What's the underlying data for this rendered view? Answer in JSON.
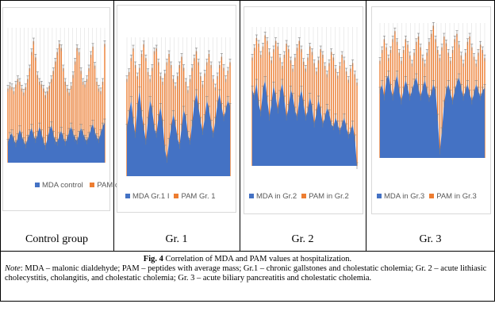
{
  "colors": {
    "mda": "#4472c4",
    "pam": "#ed7d31",
    "grid": "#d9d9d9"
  },
  "legends": {
    "control": {
      "mda": "MDA control",
      "pam": "PAM control"
    },
    "gr1": {
      "mda": "MDA Gr.1 I",
      "pam": "PAM  Gr. 1"
    },
    "gr2": {
      "mda": "MDA in Gr.2",
      "pam": "PAM in Gr.2"
    },
    "gr3": {
      "mda": "MDA in Gr.3",
      "pam": "PAM in Gr.3"
    }
  },
  "group_labels": [
    "Control group",
    "Gr. 1",
    "Gr. 2",
    "Gr. 3"
  ],
  "caption": {
    "fig_label": "Fig. 4",
    "fig_title": " Correlation of MDA and PAM values at hospitalization.",
    "note_label": "Note",
    "note_text": ": MDA – malonic dialdehyde; PAM – peptides with average mass; Gr.1 – chronic gallstones and cholestatic cholemia; Gr. 2 – acute lithiasic cholecystitis, cholangitis, and cholestatic cholemia; Gr. 3 – acute biliary pancreatitis and cholestatic cholemia."
  },
  "chart_data": [
    {
      "type": "area",
      "series": [
        {
          "name": "MDA control",
          "values": [
            0.15,
            0.2,
            0.22,
            0.17,
            0.14,
            0.19,
            0.25,
            0.2,
            0.16,
            0.13,
            0.18,
            0.22,
            0.26,
            0.2,
            0.17,
            0.21,
            0.27,
            0.22,
            0.16,
            0.12,
            0.18,
            0.24,
            0.28,
            0.21,
            0.16,
            0.15,
            0.2,
            0.24,
            0.19,
            0.15,
            0.18,
            0.23,
            0.27,
            0.22,
            0.18,
            0.16,
            0.21,
            0.26,
            0.22,
            0.18,
            0.16,
            0.2,
            0.25,
            0.29,
            0.23,
            0.19,
            0.17,
            0.22,
            0.27,
            0.3
          ]
        },
        {
          "name": "PAM control",
          "values": [
            0.55,
            0.57,
            0.56,
            0.53,
            0.58,
            0.62,
            0.6,
            0.55,
            0.52,
            0.56,
            0.62,
            0.7,
            0.82,
            0.9,
            0.78,
            0.65,
            0.6,
            0.58,
            0.55,
            0.5,
            0.53,
            0.57,
            0.62,
            0.68,
            0.75,
            0.82,
            0.88,
            0.85,
            0.7,
            0.6,
            0.55,
            0.52,
            0.57,
            0.65,
            0.75,
            0.85,
            0.82,
            0.68,
            0.6,
            0.58,
            0.62,
            0.7,
            0.8,
            0.86,
            0.72,
            0.6,
            0.55,
            0.53,
            0.6,
            0.88
          ]
        }
      ]
    },
    {
      "type": "area",
      "series": [
        {
          "name": "MDA Gr.1 I",
          "values": [
            0.35,
            0.45,
            0.55,
            0.4,
            0.3,
            0.5,
            0.62,
            0.45,
            0.35,
            0.25,
            0.4,
            0.55,
            0.48,
            0.35,
            0.3,
            0.42,
            0.5,
            0.38,
            0.2,
            0.12,
            0.25,
            0.35,
            0.45,
            0.38,
            0.28,
            0.22,
            0.35,
            0.48,
            0.42,
            0.3,
            0.25,
            0.38,
            0.52,
            0.6,
            0.5,
            0.4,
            0.32,
            0.42,
            0.55,
            0.48,
            0.38,
            0.3,
            0.4,
            0.52,
            0.6,
            0.5,
            0.42,
            0.48,
            0.55,
            0.5
          ]
        },
        {
          "name": "PAM  Gr. 1",
          "values": [
            0.7,
            0.75,
            0.85,
            0.92,
            0.8,
            0.72,
            0.78,
            0.88,
            0.95,
            0.85,
            0.75,
            0.7,
            0.78,
            0.9,
            0.92,
            0.82,
            0.72,
            0.68,
            0.74,
            0.82,
            0.88,
            0.8,
            0.7,
            0.65,
            0.72,
            0.8,
            0.86,
            0.78,
            0.68,
            0.62,
            0.7,
            0.78,
            0.85,
            0.9,
            0.82,
            0.72,
            0.66,
            0.74,
            0.82,
            0.88,
            0.8,
            0.7,
            0.64,
            0.72,
            0.8,
            0.86,
            0.78,
            0.7,
            0.76,
            0.82
          ]
        }
      ]
    },
    {
      "type": "area",
      "series": [
        {
          "name": "MDA in Gr.2",
          "values": [
            0.55,
            0.5,
            0.6,
            0.45,
            0.38,
            0.55,
            0.62,
            0.48,
            0.35,
            0.45,
            0.58,
            0.5,
            0.4,
            0.52,
            0.6,
            0.48,
            0.35,
            0.42,
            0.55,
            0.5,
            0.4,
            0.35,
            0.48,
            0.55,
            0.45,
            0.35,
            0.4,
            0.5,
            0.42,
            0.3,
            0.38,
            0.48,
            0.4,
            0.3,
            0.35,
            0.42,
            0.38,
            0.3,
            0.28,
            0.35,
            0.3,
            0.25,
            0.3,
            0.35,
            0.28,
            0.22,
            0.25,
            0.3,
            0.2,
            0.0
          ]
        },
        {
          "name": "PAM in Gr.2",
          "values": [
            0.78,
            0.85,
            0.92,
            0.88,
            0.8,
            0.86,
            0.94,
            0.9,
            0.82,
            0.76,
            0.84,
            0.9,
            0.86,
            0.78,
            0.72,
            0.8,
            0.88,
            0.84,
            0.76,
            0.7,
            0.78,
            0.85,
            0.9,
            0.84,
            0.75,
            0.7,
            0.78,
            0.86,
            0.82,
            0.74,
            0.68,
            0.76,
            0.84,
            0.8,
            0.72,
            0.66,
            0.74,
            0.82,
            0.78,
            0.7,
            0.65,
            0.72,
            0.8,
            0.76,
            0.68,
            0.62,
            0.7,
            0.74,
            0.66,
            0.6
          ]
        }
      ]
    },
    {
      "type": "area",
      "series": [
        {
          "name": "MDA in Gr.3",
          "values": [
            0.5,
            0.55,
            0.45,
            0.58,
            0.62,
            0.52,
            0.45,
            0.55,
            0.62,
            0.5,
            0.42,
            0.5,
            0.58,
            0.52,
            0.45,
            0.5,
            0.56,
            0.6,
            0.52,
            0.45,
            0.52,
            0.58,
            0.5,
            0.44,
            0.48,
            0.55,
            0.5,
            0.3,
            0.05,
            0.2,
            0.4,
            0.5,
            0.55,
            0.48,
            0.42,
            0.5,
            0.56,
            0.6,
            0.52,
            0.45,
            0.5,
            0.55,
            0.48,
            0.42,
            0.48,
            0.55,
            0.5,
            0.45,
            0.5,
            0.52
          ]
        },
        {
          "name": "PAM in Gr.3",
          "values": [
            0.72,
            0.8,
            0.88,
            0.82,
            0.74,
            0.8,
            0.88,
            0.94,
            0.86,
            0.78,
            0.72,
            0.8,
            0.88,
            0.84,
            0.76,
            0.7,
            0.78,
            0.86,
            0.9,
            0.82,
            0.74,
            0.7,
            0.78,
            0.86,
            0.92,
            0.98,
            0.88,
            0.8,
            0.74,
            0.82,
            0.9,
            0.85,
            0.78,
            0.72,
            0.8,
            0.88,
            0.92,
            0.84,
            0.76,
            0.7,
            0.78,
            0.86,
            0.9,
            0.82,
            0.75,
            0.7,
            0.78,
            0.84,
            0.8,
            0.74
          ]
        }
      ]
    }
  ]
}
